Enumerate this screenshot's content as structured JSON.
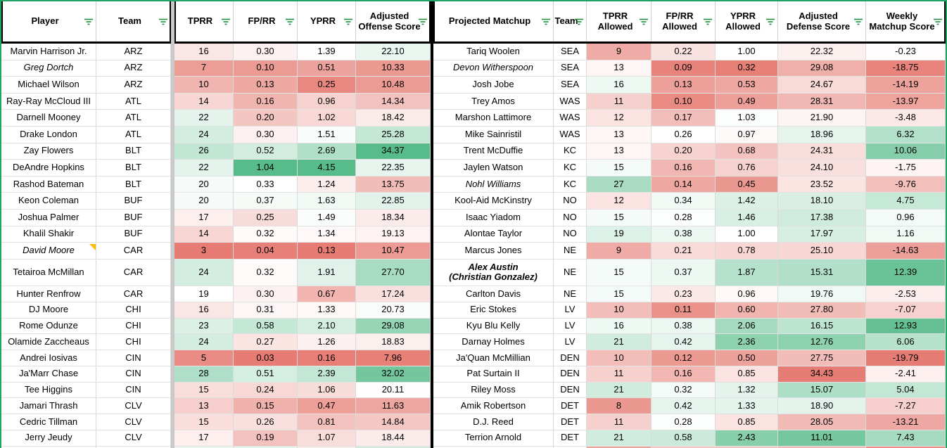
{
  "colors": {
    "scale_red": "#e67c73",
    "scale_green": "#57bb8a",
    "filter_range_border": "#21a366",
    "filter_icon_green": "#1e8e3e",
    "note_triangle": "#fbbc04",
    "table_divider_black": "#000000",
    "column_gap_gray": "#c9c9c9",
    "header_border": "#000000",
    "gridline_vertical": "#dadada",
    "gridline_horizontal": "#e2e2e2",
    "cell_text": "#000000"
  },
  "color_scales": {
    "tprr": {
      "min": 3,
      "mid": 19,
      "max": 38
    },
    "fprr": {
      "min": 0.03,
      "mid": 0.33,
      "max": 1.04
    },
    "yprr": {
      "min": 0.13,
      "mid": 1.4,
      "max": 4.15
    },
    "adj_off": {
      "min": 7.5,
      "mid": 20.3,
      "max": 34.4
    },
    "tprr_allowed": {
      "min": 6.5,
      "mid": 13.5,
      "max": 40
    },
    "fprr_allowed": {
      "min": 0.08,
      "mid": 0.26,
      "max": 1.3
    },
    "yprr_allowed": {
      "min": 0.3,
      "mid": 1.0,
      "max": 3.0
    },
    "adj_def": {
      "min": 9,
      "mid": 20.8,
      "max": 34.5,
      "inverted": true
    },
    "weekly": {
      "min": -20,
      "mid": 0,
      "max": 14
    }
  },
  "tables": [
    {
      "name": "offense",
      "headers": [
        {
          "key": "player",
          "label": "Player"
        },
        {
          "key": "team",
          "label": "Team"
        },
        {
          "key": "tprr",
          "label": "TPRR"
        },
        {
          "key": "fprr",
          "label": "FP/RR"
        },
        {
          "key": "yprr",
          "label": "YPRR"
        },
        {
          "key": "adj_off",
          "label": "Adjusted Offense Score"
        }
      ],
      "rows": [
        {
          "player": "Marvin Harrison Jr.",
          "team": "ARZ",
          "tprr": "16",
          "fprr": "0.30",
          "yprr": "1.39",
          "adj_off": "22.10"
        },
        {
          "player": "Greg Dortch",
          "team": "ARZ",
          "tprr": "7",
          "fprr": "0.10",
          "yprr": "0.51",
          "adj_off": "10.33",
          "style": "italic"
        },
        {
          "player": "Michael Wilson",
          "team": "ARZ",
          "tprr": "10",
          "fprr": "0.13",
          "yprr": "0.25",
          "adj_off": "10.48"
        },
        {
          "player": "Ray-Ray McCloud III",
          "team": "ATL",
          "tprr": "14",
          "fprr": "0.16",
          "yprr": "0.96",
          "adj_off": "14.34"
        },
        {
          "player": "Darnell Mooney",
          "team": "ATL",
          "tprr": "22",
          "fprr": "0.20",
          "yprr": "1.02",
          "adj_off": "18.42"
        },
        {
          "player": "Drake London",
          "team": "ATL",
          "tprr": "24",
          "fprr": "0.30",
          "yprr": "1.51",
          "adj_off": "25.28"
        },
        {
          "player": "Zay Flowers",
          "team": "BLT",
          "tprr": "26",
          "fprr": "0.52",
          "yprr": "2.69",
          "adj_off": "34.37"
        },
        {
          "player": "DeAndre Hopkins",
          "team": "BLT",
          "tprr": "22",
          "fprr": "1.04",
          "yprr": "4.15",
          "adj_off": "22.35"
        },
        {
          "player": "Rashod Bateman",
          "team": "BLT",
          "tprr": "20",
          "fprr": "0.33",
          "yprr": "1.24",
          "adj_off": "13.75"
        },
        {
          "player": "Keon Coleman",
          "team": "BUF",
          "tprr": "20",
          "fprr": "0.37",
          "yprr": "1.63",
          "adj_off": "22.85"
        },
        {
          "player": "Joshua Palmer",
          "team": "BUF",
          "tprr": "17",
          "fprr": "0.25",
          "yprr": "1.49",
          "adj_off": "18.34"
        },
        {
          "player": "Khalil Shakir",
          "team": "BUF",
          "tprr": "14",
          "fprr": "0.32",
          "yprr": "1.34",
          "adj_off": "19.13"
        },
        {
          "player": "David Moore",
          "team": "CAR",
          "tprr": "3",
          "fprr": "0.04",
          "yprr": "0.13",
          "adj_off": "10.47",
          "style": "italic",
          "note": true
        },
        {
          "player": "Tetairoa McMillan",
          "team": "CAR",
          "tprr": "24",
          "fprr": "0.32",
          "yprr": "1.91",
          "adj_off": "27.70"
        },
        {
          "player": "Hunter Renfrow",
          "team": "CAR",
          "tprr": "19",
          "fprr": "0.30",
          "yprr": "0.67",
          "adj_off": "17.24"
        },
        {
          "player": "DJ Moore",
          "team": "CHI",
          "tprr": "16",
          "fprr": "0.31",
          "yprr": "1.33",
          "adj_off": "20.73"
        },
        {
          "player": "Rome Odunze",
          "team": "CHI",
          "tprr": "23",
          "fprr": "0.58",
          "yprr": "2.10",
          "adj_off": "29.08"
        },
        {
          "player": "Olamide Zaccheaus",
          "team": "CHI",
          "tprr": "24",
          "fprr": "0.27",
          "yprr": "1.26",
          "adj_off": "18.83"
        },
        {
          "player": "Andrei Iosivas",
          "team": "CIN",
          "tprr": "5",
          "fprr": "0.03",
          "yprr": "0.16",
          "adj_off": "7.96"
        },
        {
          "player": "Ja'Marr Chase",
          "team": "CIN",
          "tprr": "28",
          "fprr": "0.51",
          "yprr": "2.39",
          "adj_off": "32.02"
        },
        {
          "player": "Tee Higgins",
          "team": "CIN",
          "tprr": "15",
          "fprr": "0.24",
          "yprr": "1.06",
          "adj_off": "20.11"
        },
        {
          "player": "Jamari Thrash",
          "team": "CLV",
          "tprr": "13",
          "fprr": "0.15",
          "yprr": "0.47",
          "adj_off": "11.63"
        },
        {
          "player": "Cedric Tillman",
          "team": "CLV",
          "tprr": "15",
          "fprr": "0.26",
          "yprr": "0.81",
          "adj_off": "14.84"
        },
        {
          "player": "Jerry Jeudy",
          "team": "CLV",
          "tprr": "17",
          "fprr": "0.19",
          "yprr": "1.07",
          "adj_off": "18.44"
        }
      ],
      "partial_row_colors": [
        "#eaf5f0",
        "#e3f2ea",
        "#f8ecea",
        "#cfeade"
      ]
    },
    {
      "name": "defense",
      "headers": [
        {
          "key": "matchup",
          "label": "Projected Matchup"
        },
        {
          "key": "team",
          "label": "Team"
        },
        {
          "key": "tprr_allowed",
          "label": "TPRR Allowed"
        },
        {
          "key": "fprr_allowed",
          "label": "FP/RR Allowed"
        },
        {
          "key": "yprr_allowed",
          "label": "YPRR Allowed"
        },
        {
          "key": "adj_def",
          "label": "Adjusted Defense Score"
        },
        {
          "key": "weekly",
          "label": "Weekly Matchup Score"
        }
      ],
      "rows": [
        {
          "matchup": "Tariq Woolen",
          "team": "SEA",
          "tprr_allowed": "9",
          "fprr_allowed": "0.22",
          "yprr_allowed": "1.00",
          "adj_def": "22.32",
          "weekly": "-0.23"
        },
        {
          "matchup": "Devon Witherspoon",
          "team": "SEA",
          "tprr_allowed": "13",
          "fprr_allowed": "0.09",
          "yprr_allowed": "0.32",
          "adj_def": "29.08",
          "weekly": "-18.75",
          "style": "italic"
        },
        {
          "matchup": "Josh Jobe",
          "team": "SEA",
          "tprr_allowed": "16",
          "fprr_allowed": "0.13",
          "yprr_allowed": "0.53",
          "adj_def": "24.67",
          "weekly": "-14.19"
        },
        {
          "matchup": "Trey Amos",
          "team": "WAS",
          "tprr_allowed": "11",
          "fprr_allowed": "0.10",
          "yprr_allowed": "0.49",
          "adj_def": "28.31",
          "weekly": "-13.97"
        },
        {
          "matchup": "Marshon Lattimore",
          "team": "WAS",
          "tprr_allowed": "12",
          "fprr_allowed": "0.17",
          "yprr_allowed": "1.03",
          "adj_def": "21.90",
          "weekly": "-3.48"
        },
        {
          "matchup": "Mike Sainristil",
          "team": "WAS",
          "tprr_allowed": "13",
          "fprr_allowed": "0.26",
          "yprr_allowed": "0.97",
          "adj_def": "18.96",
          "weekly": "6.32"
        },
        {
          "matchup": "Trent McDuffie",
          "team": "KC",
          "tprr_allowed": "13",
          "fprr_allowed": "0.20",
          "yprr_allowed": "0.68",
          "adj_def": "24.31",
          "weekly": "10.06"
        },
        {
          "matchup": "Jaylen Watson",
          "team": "KC",
          "tprr_allowed": "15",
          "fprr_allowed": "0.16",
          "yprr_allowed": "0.76",
          "adj_def": "24.10",
          "weekly": "-1.75"
        },
        {
          "matchup": "Nohl Williams",
          "team": "KC",
          "tprr_allowed": "27",
          "fprr_allowed": "0.14",
          "yprr_allowed": "0.45",
          "adj_def": "23.52",
          "weekly": "-9.76",
          "style": "italic"
        },
        {
          "matchup": "Kool-Aid McKinstry",
          "team": "NO",
          "tprr_allowed": "12",
          "fprr_allowed": "0.34",
          "yprr_allowed": "1.42",
          "adj_def": "18.10",
          "weekly": "4.75"
        },
        {
          "matchup": "Isaac Yiadom",
          "team": "NO",
          "tprr_allowed": "15",
          "fprr_allowed": "0.28",
          "yprr_allowed": "1.46",
          "adj_def": "17.38",
          "weekly": "0.96"
        },
        {
          "matchup": "Alontae Taylor",
          "team": "NO",
          "tprr_allowed": "19",
          "fprr_allowed": "0.38",
          "yprr_allowed": "1.00",
          "adj_def": "17.97",
          "weekly": "1.16"
        },
        {
          "matchup": "Marcus Jones",
          "team": "NE",
          "tprr_allowed": "9",
          "fprr_allowed": "0.21",
          "yprr_allowed": "0.78",
          "adj_def": "25.10",
          "weekly": "-14.63"
        },
        {
          "matchup": "Alex Austin\n(Christian Gonzalez)",
          "team": "NE",
          "tprr_allowed": "15",
          "fprr_allowed": "0.37",
          "yprr_allowed": "1.87",
          "adj_def": "15.31",
          "weekly": "12.39",
          "style": "bolditalic"
        },
        {
          "matchup": "Carlton Davis",
          "team": "NE",
          "tprr_allowed": "15",
          "fprr_allowed": "0.23",
          "yprr_allowed": "0.96",
          "adj_def": "19.76",
          "weekly": "-2.53"
        },
        {
          "matchup": "Eric Stokes",
          "team": "LV",
          "tprr_allowed": "10",
          "fprr_allowed": "0.11",
          "yprr_allowed": "0.60",
          "adj_def": "27.80",
          "weekly": "-7.07"
        },
        {
          "matchup": "Kyu Blu Kelly",
          "team": "LV",
          "tprr_allowed": "16",
          "fprr_allowed": "0.38",
          "yprr_allowed": "2.06",
          "adj_def": "16.15",
          "weekly": "12.93"
        },
        {
          "matchup": "Darnay Holmes",
          "team": "LV",
          "tprr_allowed": "21",
          "fprr_allowed": "0.42",
          "yprr_allowed": "2.36",
          "adj_def": "12.76",
          "weekly": "6.06"
        },
        {
          "matchup": "Ja'Quan McMillian",
          "team": "DEN",
          "tprr_allowed": "10",
          "fprr_allowed": "0.12",
          "yprr_allowed": "0.50",
          "adj_def": "27.75",
          "weekly": "-19.79"
        },
        {
          "matchup": "Pat Surtain II",
          "team": "DEN",
          "tprr_allowed": "11",
          "fprr_allowed": "0.16",
          "yprr_allowed": "0.85",
          "adj_def": "34.43",
          "weekly": "-2.41"
        },
        {
          "matchup": "Riley Moss",
          "team": "DEN",
          "tprr_allowed": "21",
          "fprr_allowed": "0.32",
          "yprr_allowed": "1.32",
          "adj_def": "15.07",
          "weekly": "5.04"
        },
        {
          "matchup": "Amik Robertson",
          "team": "DET",
          "tprr_allowed": "8",
          "fprr_allowed": "0.42",
          "yprr_allowed": "1.33",
          "adj_def": "18.90",
          "weekly": "-7.27"
        },
        {
          "matchup": "D.J. Reed",
          "team": "DET",
          "tprr_allowed": "11",
          "fprr_allowed": "0.28",
          "yprr_allowed": "0.85",
          "adj_def": "28.05",
          "weekly": "-13.21"
        },
        {
          "matchup": "Terrion Arnold",
          "team": "DET",
          "tprr_allowed": "21",
          "fprr_allowed": "0.58",
          "yprr_allowed": "2.43",
          "adj_def": "11.01",
          "weekly": "7.43"
        }
      ],
      "partial_row_colors": [
        "#eda59e",
        "#f4c7c3",
        "#f4c7c3",
        "#f2b9b4",
        "#ea8e86"
      ]
    }
  ]
}
